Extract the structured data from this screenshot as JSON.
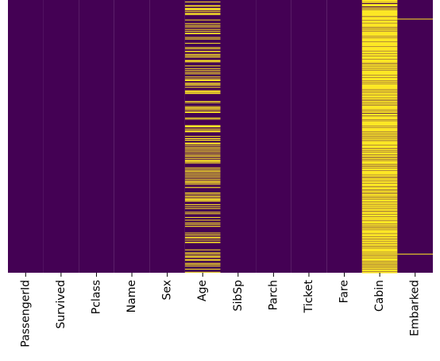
{
  "chart_data": {
    "type": "heatmap",
    "categories": [
      "PassengerId",
      "Survived",
      "Pclass",
      "Name",
      "Sex",
      "Age",
      "SibSp",
      "Parch",
      "Ticket",
      "Fare",
      "Cabin",
      "Embarked"
    ],
    "rows": 891,
    "color_present": "#440154",
    "color_missing": "#fde725",
    "series": [
      {
        "name": "PassengerId",
        "missing_ranges": []
      },
      {
        "name": "Survived",
        "missing_ranges": []
      },
      {
        "name": "Pclass",
        "missing_ranges": []
      },
      {
        "name": "Name",
        "missing_ranges": []
      },
      {
        "name": "Sex",
        "missing_ranges": []
      },
      {
        "name": "Age",
        "missing_ranges": [
          [
            5,
            5
          ],
          [
            17,
            17
          ],
          [
            19,
            19
          ],
          [
            26,
            26
          ],
          [
            28,
            29
          ],
          [
            31,
            32
          ],
          [
            36,
            36
          ],
          [
            42,
            42
          ],
          [
            45,
            48
          ],
          [
            64,
            65
          ],
          [
            76,
            77
          ],
          [
            82,
            82
          ],
          [
            87,
            88
          ],
          [
            95,
            95
          ],
          [
            101,
            101
          ],
          [
            107,
            107
          ],
          [
            109,
            109
          ],
          [
            121,
            121
          ],
          [
            126,
            128
          ],
          [
            140,
            140
          ],
          [
            154,
            154
          ],
          [
            158,
            159
          ],
          [
            166,
            169
          ],
          [
            176,
            176
          ],
          [
            180,
            182
          ],
          [
            185,
            187
          ],
          [
            196,
            196
          ],
          [
            198,
            198
          ],
          [
            201,
            201
          ],
          [
            214,
            214
          ],
          [
            223,
            223
          ],
          [
            229,
            229
          ],
          [
            235,
            236
          ],
          [
            240,
            241
          ],
          [
            250,
            250
          ],
          [
            256,
            256
          ],
          [
            260,
            264
          ],
          [
            270,
            271
          ],
          [
            274,
            274
          ],
          [
            277,
            277
          ],
          [
            284,
            284
          ],
          [
            295,
            295
          ],
          [
            298,
            301
          ],
          [
            303,
            306
          ],
          [
            330,
            331
          ],
          [
            334,
            335
          ],
          [
            347,
            347
          ],
          [
            351,
            351
          ],
          [
            354,
            354
          ],
          [
            358,
            359
          ],
          [
            364,
            368
          ],
          [
            384,
            384
          ],
          [
            388,
            388
          ],
          [
            409,
            415
          ],
          [
            420,
            421
          ],
          [
            425,
            425
          ],
          [
            428,
            431
          ],
          [
            444,
            444
          ],
          [
            451,
            454
          ],
          [
            457,
            459
          ],
          [
            466,
            471
          ],
          [
            475,
            476
          ],
          [
            481,
            482
          ],
          [
            485,
            485
          ],
          [
            490,
            491
          ],
          [
            495,
            497
          ],
          [
            502,
            502
          ],
          [
            507,
            507
          ],
          [
            511,
            511
          ],
          [
            517,
            517
          ],
          [
            522,
            522
          ],
          [
            524,
            524
          ],
          [
            527,
            527
          ],
          [
            531,
            533
          ],
          [
            547,
            547
          ],
          [
            552,
            552
          ],
          [
            557,
            560
          ],
          [
            563,
            564
          ],
          [
            568,
            568
          ],
          [
            573,
            573
          ],
          [
            578,
            578
          ],
          [
            584,
            584
          ],
          [
            589,
            589
          ],
          [
            593,
            593
          ],
          [
            596,
            598
          ],
          [
            601,
            602
          ],
          [
            611,
            613
          ],
          [
            629,
            629
          ],
          [
            633,
            633
          ],
          [
            639,
            639
          ],
          [
            643,
            643
          ],
          [
            648,
            648
          ],
          [
            650,
            650
          ],
          [
            653,
            653
          ],
          [
            656,
            656
          ],
          [
            667,
            669
          ],
          [
            674,
            674
          ],
          [
            680,
            680
          ],
          [
            692,
            692
          ],
          [
            697,
            697
          ],
          [
            709,
            709
          ],
          [
            718,
            718
          ],
          [
            727,
            728
          ],
          [
            732,
            732
          ],
          [
            738,
            740
          ],
          [
            760,
            760
          ],
          [
            766,
            768
          ],
          [
            773,
            773
          ],
          [
            776,
            778
          ],
          [
            783,
            784
          ],
          [
            790,
            793
          ],
          [
            815,
            815
          ],
          [
            825,
            828
          ],
          [
            832,
            832
          ],
          [
            837,
            837
          ],
          [
            839,
            839
          ],
          [
            846,
            846
          ],
          [
            849,
            849
          ],
          [
            859,
            859
          ],
          [
            863,
            863
          ],
          [
            868,
            868
          ],
          [
            878,
            878
          ],
          [
            888,
            888
          ]
        ]
      },
      {
        "name": "SibSp",
        "missing_ranges": []
      },
      {
        "name": "Parch",
        "missing_ranges": []
      },
      {
        "name": "Ticket",
        "missing_ranges": []
      },
      {
        "name": "Fare",
        "missing_ranges": []
      },
      {
        "name": "Cabin",
        "missing_ranges": [
          [
            0,
            0
          ],
          [
            2,
            2
          ],
          [
            4,
            5
          ],
          [
            7,
            9
          ],
          [
            13,
            20
          ],
          [
            24,
            26
          ],
          [
            28,
            29
          ],
          [
            32,
            51
          ],
          [
            53,
            54
          ],
          [
            56,
            65
          ],
          [
            67,
            74
          ],
          [
            76,
            87
          ],
          [
            89,
            91
          ],
          [
            93,
            96
          ],
          [
            98,
            101
          ],
          [
            103,
            117
          ],
          [
            119,
            122
          ],
          [
            124,
            135
          ],
          [
            137,
            150
          ],
          [
            152,
            165
          ],
          [
            167,
            173
          ],
          [
            175,
            182
          ],
          [
            184,
            192
          ],
          [
            194,
            204
          ],
          [
            206,
            208
          ],
          [
            210,
            214
          ],
          [
            216,
            217
          ],
          [
            219,
            223
          ],
          [
            225,
            229
          ],
          [
            231,
            244
          ],
          [
            246,
            251
          ],
          [
            253,
            262
          ],
          [
            264,
            268
          ],
          [
            270,
            272
          ],
          [
            274,
            290
          ],
          [
            292,
            296
          ],
          [
            298,
            298
          ],
          [
            300,
            302
          ],
          [
            304,
            304
          ],
          [
            306,
            309
          ],
          [
            311,
            318
          ],
          [
            320,
            324
          ],
          [
            326,
            328
          ],
          [
            330,
            331
          ],
          [
            333,
            336
          ],
          [
            338,
            339
          ],
          [
            341,
            343
          ],
          [
            345,
            357
          ],
          [
            359,
            362
          ],
          [
            364,
            368
          ],
          [
            371,
            376
          ],
          [
            378,
            379
          ],
          [
            381,
            389
          ],
          [
            391,
            392
          ],
          [
            394,
            395
          ],
          [
            397,
            411
          ],
          [
            413,
            415
          ],
          [
            417,
            428
          ],
          [
            430,
            434
          ],
          [
            436,
            438
          ],
          [
            440,
            444
          ],
          [
            446,
            448
          ],
          [
            450,
            451
          ],
          [
            453,
            456
          ],
          [
            458,
            459
          ],
          [
            461,
            461
          ],
          [
            463,
            472
          ],
          [
            474,
            483
          ],
          [
            485,
            486
          ],
          [
            488,
            491
          ],
          [
            493,
            495
          ],
          [
            497,
            497
          ],
          [
            499,
            503
          ],
          [
            505,
            506
          ],
          [
            508,
            511
          ],
          [
            513,
            515
          ],
          [
            517,
            519
          ],
          [
            521,
            522
          ],
          [
            524,
            525
          ],
          [
            527,
            535
          ],
          [
            537,
            539
          ],
          [
            541,
            543
          ],
          [
            545,
            547
          ],
          [
            549,
            556
          ],
          [
            558,
            570
          ],
          [
            572,
            576
          ],
          [
            578,
            580
          ],
          [
            582,
            583
          ],
          [
            585,
            590
          ],
          [
            592,
            598
          ],
          [
            600,
            608
          ],
          [
            610,
            611
          ],
          [
            613,
            618
          ],
          [
            620,
            621
          ],
          [
            623,
            624
          ],
          [
            626,
            628
          ],
          [
            630,
            632
          ],
          [
            634,
            640
          ],
          [
            642,
            644
          ],
          [
            646,
            650
          ],
          [
            652,
            658
          ],
          [
            660,
            661
          ],
          [
            663,
            667
          ],
          [
            669,
            674
          ],
          [
            676,
            680
          ],
          [
            682,
            688
          ],
          [
            690,
            691
          ],
          [
            693,
            698
          ],
          [
            700,
            700
          ],
          [
            702,
            707
          ],
          [
            709,
            709
          ],
          [
            711,
            711
          ],
          [
            713,
            714
          ],
          [
            716,
            716
          ],
          [
            718,
            720
          ],
          [
            722,
            729
          ],
          [
            731,
            736
          ],
          [
            738,
            740
          ],
          [
            742,
            744
          ],
          [
            746,
            747
          ],
          [
            749,
            750
          ],
          [
            752,
            762
          ],
          [
            764,
            771
          ],
          [
            773,
            778
          ],
          [
            780,
            781
          ],
          [
            783,
            788
          ],
          [
            790,
            795
          ],
          [
            797,
            797
          ],
          [
            799,
            802
          ],
          [
            804,
            805
          ],
          [
            807,
            809
          ],
          [
            811,
            822
          ],
          [
            824,
            828
          ],
          [
            830,
            834
          ],
          [
            836,
            837
          ],
          [
            839,
            841
          ],
          [
            843,
            852
          ],
          [
            854,
            856
          ],
          [
            858,
            861
          ],
          [
            863,
            865
          ],
          [
            867,
            870
          ],
          [
            872,
            873
          ],
          [
            875,
            878
          ],
          [
            880,
            886
          ],
          [
            888,
            888
          ],
          [
            890,
            890
          ]
        ]
      },
      {
        "name": "Embarked",
        "missing_ranges": [
          [
            61,
            61
          ],
          [
            829,
            829
          ]
        ]
      }
    ]
  }
}
